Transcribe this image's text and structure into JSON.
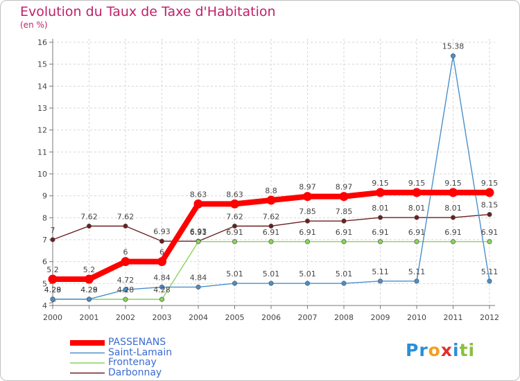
{
  "header": {
    "title": "Evolution du Taux de Taxe d'Habitation",
    "subtitle": "(en %)"
  },
  "logo": {
    "text": "Proxiti"
  },
  "chart_data": {
    "type": "line",
    "title": "Evolution du Taux de Taxe d'Habitation",
    "ylabel": "(en %)",
    "xlabel": "",
    "ylim": [
      4,
      16
    ],
    "grid": true,
    "legend_position": "bottom-left",
    "x": [
      "2000",
      "2001",
      "2002",
      "2003",
      "2004",
      "2005",
      "2006",
      "2007",
      "2008",
      "2009",
      "2010",
      "2011",
      "2012"
    ],
    "yticks": [
      "4",
      "5",
      "6",
      "7",
      "8",
      "9",
      "10",
      "11",
      "12",
      "13",
      "14",
      "15",
      "16"
    ],
    "series": [
      {
        "name": "Darbonnay",
        "color": "#6b1f1f",
        "values": [
          7,
          7.62,
          7.62,
          6.93,
          6.93,
          7.62,
          7.62,
          7.85,
          7.85,
          8.01,
          8.01,
          8.01,
          8.15
        ],
        "labels": [
          "7",
          "7.62",
          "7.62",
          "6.93",
          "6.93",
          "7.62",
          "7.62",
          "7.85",
          "7.85",
          "8.01",
          "8.01",
          "8.01",
          "8.15"
        ]
      },
      {
        "name": "Frontenay",
        "color": "#88d45a",
        "values": [
          4.28,
          4.28,
          4.28,
          4.28,
          6.91,
          6.91,
          6.91,
          6.91,
          6.91,
          6.91,
          6.91,
          6.91,
          6.91
        ],
        "labels": [
          "4.28",
          "4.28",
          "4.28",
          "4.28",
          "6.91",
          "6.91",
          "6.91",
          "6.91",
          "6.91",
          "6.91",
          "6.91",
          "6.91",
          "6.91"
        ]
      },
      {
        "name": "Saint-Lamain",
        "color": "#4a8fca",
        "values": [
          4.29,
          4.29,
          4.72,
          4.84,
          4.84,
          5.01,
          5.01,
          5.01,
          5.01,
          5.11,
          5.11,
          15.38,
          5.11
        ],
        "labels": [
          "4.29",
          "4.29",
          "4.72",
          "4.84",
          "4.84",
          "5.01",
          "5.01",
          "5.01",
          "5.01",
          "5.11",
          "5.11",
          "15.38",
          "5.11"
        ]
      },
      {
        "name": "PASSENANS",
        "color": "#ff0000",
        "values": [
          5.2,
          5.2,
          6,
          6,
          8.63,
          8.63,
          8.8,
          8.97,
          8.97,
          9.15,
          9.15,
          9.15,
          9.15
        ],
        "labels": [
          "5.2",
          "5.2",
          "6",
          "6",
          "8.63",
          "8.63",
          "8.8",
          "8.97",
          "8.97",
          "9.15",
          "9.15",
          "9.15",
          "9.15"
        ]
      }
    ],
    "legend": [
      "PASSENANS",
      "Saint-Lamain",
      "Frontenay",
      "Darbonnay"
    ]
  }
}
